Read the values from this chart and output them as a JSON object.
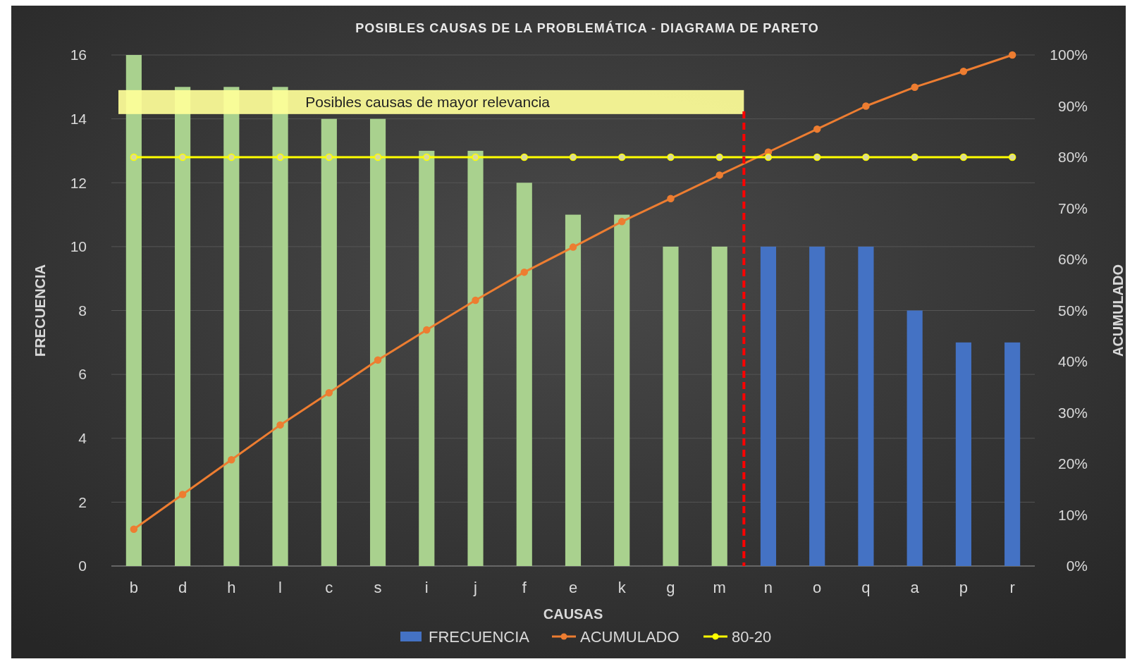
{
  "chart_data": {
    "type": "bar",
    "title": "POSIBLES CAUSAS DE LA PROBLEMÁTICA - DIAGRAMA DE PARETO",
    "xlabel": "CAUSAS",
    "ylabel": "FRECUENCIA",
    "y2label": "ACUMULADO",
    "categories": [
      "b",
      "d",
      "h",
      "l",
      "c",
      "s",
      "i",
      "j",
      "f",
      "e",
      "k",
      "g",
      "m",
      "n",
      "o",
      "q",
      "a",
      "p",
      "r"
    ],
    "series": [
      {
        "name": "FRECUENCIA",
        "color": "#4472c4",
        "colors": [
          "#a9d18e",
          "#a9d18e",
          "#a9d18e",
          "#a9d18e",
          "#a9d18e",
          "#a9d18e",
          "#a9d18e",
          "#a9d18e",
          "#a9d18e",
          "#a9d18e",
          "#a9d18e",
          "#a9d18e",
          "#a9d18e",
          "#4472c4",
          "#4472c4",
          "#4472c4",
          "#4472c4",
          "#4472c4",
          "#4472c4"
        ],
        "values": [
          16,
          15,
          15,
          15,
          14,
          14,
          13,
          13,
          12,
          11,
          11,
          10,
          10,
          10,
          10,
          10,
          8,
          7,
          7
        ]
      },
      {
        "name": "ACUMULADO",
        "type": "line",
        "axis": "y2",
        "color": "#ed7d31",
        "values": [
          7.2,
          14.0,
          20.8,
          27.6,
          33.9,
          40.3,
          46.2,
          52.0,
          57.5,
          62.4,
          67.4,
          71.9,
          76.5,
          81.0,
          85.5,
          90.0,
          93.7,
          96.8,
          100
        ]
      },
      {
        "name": "80-20",
        "type": "line",
        "axis": "y2",
        "color": "#ffff00",
        "values": [
          80,
          80,
          80,
          80,
          80,
          80,
          80,
          80,
          80,
          80,
          80,
          80,
          80,
          80,
          80,
          80,
          80,
          80,
          80
        ]
      }
    ],
    "ylim": [
      0,
      16
    ],
    "yticks": [
      0,
      2,
      4,
      6,
      8,
      10,
      12,
      14,
      16
    ],
    "y2lim": [
      0,
      100
    ],
    "y2ticks": [
      {
        "value": 0,
        "label": "0%"
      },
      {
        "value": 10,
        "label": "10%"
      },
      {
        "value": 20,
        "label": "20%"
      },
      {
        "value": 30,
        "label": "30%"
      },
      {
        "value": 40,
        "label": "40%"
      },
      {
        "value": 50,
        "label": "50%"
      },
      {
        "value": 60,
        "label": "60%"
      },
      {
        "value": 70,
        "label": "70%"
      },
      {
        "value": 80,
        "label": "80%"
      },
      {
        "value": 90,
        "label": "90%"
      },
      {
        "value": 100,
        "label": "100%"
      }
    ],
    "ref_lines": [
      {
        "axis": "x",
        "value": "n",
        "color": "#ff0000",
        "line_style": "dashed"
      }
    ],
    "annotations": [
      "Posibles causas de mayor relevancia"
    ],
    "grid": "y",
    "legend": "bottom",
    "marker": "circle"
  }
}
